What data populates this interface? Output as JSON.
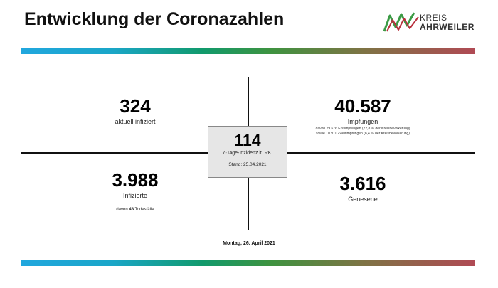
{
  "header": {
    "title": "Entwicklung der Coronazahlen",
    "logo_line1": "KREIS",
    "logo_line2": "AHRWEILER"
  },
  "colors": {
    "logo_green": "#3b9b45",
    "logo_red": "#b8313e",
    "bar_blue": "#21a7de",
    "bar_green": "#3e9340",
    "bar_red": "#b04a54",
    "box_bg": "#e6e6e6"
  },
  "stats": {
    "infected_current": {
      "value": "324",
      "label": "aktuell infiziert"
    },
    "vaccinations": {
      "value": "40.587",
      "label": "Impfungen",
      "note1": "davon 29.676 Erstimpfungen (22,8 % der Kreisbevölkerung)",
      "note2": "sowie 10.911 Zweitimpfungen (8,4 % der Kreisbevölkerung)"
    },
    "infected_total": {
      "value": "3.988",
      "label": "Infizierte",
      "deaths_prefix": "davon",
      "deaths_value": "48",
      "deaths_suffix": "Todesfälle"
    },
    "recovered": {
      "value": "3.616",
      "label": "Genesene"
    }
  },
  "incidence": {
    "value": "114",
    "label": "7-Tage-Inzidenz lt. RKI",
    "stand": "Stand: 25.04.2021"
  },
  "footer": {
    "date": "Montag, 26. April 2021"
  }
}
